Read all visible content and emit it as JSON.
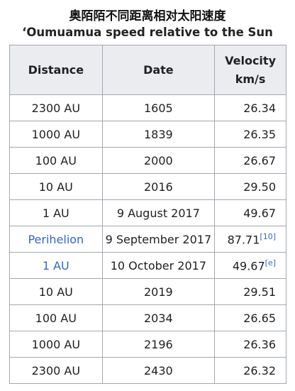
{
  "header": {
    "title_zh": "奥陌陌不同距离相对太阳速度",
    "title_en": "‘Oumuamua speed relative to the Sun"
  },
  "table": {
    "columns": {
      "distance": "Distance",
      "date": "Date",
      "velocity": "Velocity",
      "velocity_unit": "km/s"
    },
    "rows": [
      {
        "distance": "2300 AU",
        "date": "1605",
        "velocity": "26.34"
      },
      {
        "distance": "1000 AU",
        "date": "1839",
        "velocity": "26.35"
      },
      {
        "distance": "100 AU",
        "date": "2000",
        "velocity": "26.67"
      },
      {
        "distance": "10 AU",
        "date": "2016",
        "velocity": "29.50"
      },
      {
        "distance": "1 AU",
        "date": "9 August 2017",
        "velocity": "49.67"
      },
      {
        "distance": "Perihelion",
        "date": "9 September 2017",
        "velocity": "87.71",
        "ref": "[10]"
      },
      {
        "distance": "1 AU",
        "date": "10 October 2017",
        "velocity": "49.67",
        "ref": "[e]"
      },
      {
        "distance": "10 AU",
        "date": "2019",
        "velocity": "29.51"
      },
      {
        "distance": "100 AU",
        "date": "2034",
        "velocity": "26.65"
      },
      {
        "distance": "1000 AU",
        "date": "2196",
        "velocity": "26.36"
      },
      {
        "distance": "2300 AU",
        "date": "2430",
        "velocity": "26.32"
      }
    ]
  }
}
